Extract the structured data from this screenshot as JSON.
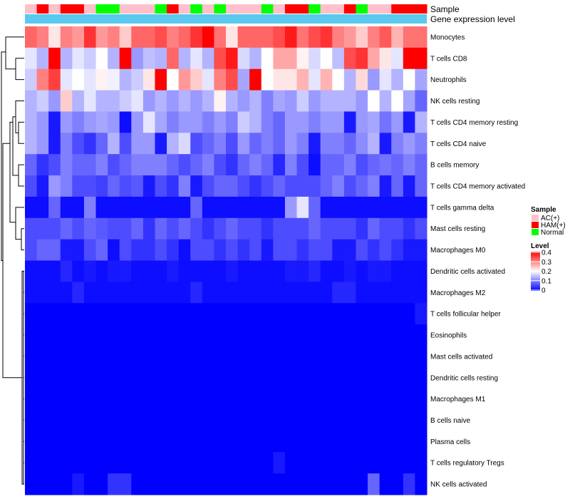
{
  "chart_data": {
    "type": "heatmap",
    "title": "",
    "annotation_titles": {
      "sample": "Sample",
      "gene_expression": "Gene expression level"
    },
    "legend": {
      "sample": {
        "title": "Sample",
        "items": [
          {
            "label": "AC(+)",
            "color": "#FFC0CB"
          },
          {
            "label": "HAM(+)",
            "color": "#FF0000"
          },
          {
            "label": "Normal",
            "color": "#00FF00"
          }
        ]
      },
      "level": {
        "title": "Level",
        "ticks": [
          "0.4",
          "0.3",
          "0.2",
          "0.1",
          "0"
        ],
        "range": [
          0,
          0.4
        ],
        "colors": {
          "low": "#0000FF",
          "mid": "#FFFFFF",
          "high": "#FF0000",
          "mid_value": 0.2
        }
      }
    },
    "sample_groups": [
      "AC(+)",
      "HAM(+)",
      "AC(+)",
      "HAM(+)",
      "HAM(+)",
      "AC(+)",
      "Normal",
      "Normal",
      "AC(+)",
      "AC(+)",
      "AC(+)",
      "Normal",
      "HAM(+)",
      "AC(+)",
      "Normal",
      "AC(+)",
      "Normal",
      "AC(+)",
      "AC(+)",
      "AC(+)",
      "Normal",
      "AC(+)",
      "HAM(+)",
      "HAM(+)",
      "Normal",
      "AC(+)",
      "AC(+)",
      "HAM(+)",
      "Normal",
      "AC(+)",
      "AC(+)",
      "HAM(+)",
      "HAM(+)",
      "HAM(+)"
    ],
    "gene_expression_color": "#5BC8EE",
    "rows": [
      "Monocytes",
      "T cells CD8",
      "Neutrophils",
      "NK cells resting",
      "T cells CD4 memory resting",
      "T cells CD4 naive",
      "B cells memory",
      "T cells CD4 memory activated",
      "T cells gamma delta",
      "Mast cells resting",
      "Macrophages M0",
      "Dendritic cells activated",
      "Macrophages M2",
      "T cells follicular helper",
      "Eosinophils",
      "Mast cells activated",
      "Dendritic cells resting",
      "Macrophages M1",
      "B cells naive",
      "Plasma cells",
      "T cells regulatory  Tregs",
      "NK cells activated"
    ],
    "values": [
      [
        0.32,
        0.3,
        0.22,
        0.3,
        0.28,
        0.36,
        0.28,
        0.3,
        0.24,
        0.32,
        0.32,
        0.34,
        0.3,
        0.32,
        0.36,
        0.4,
        0.31,
        0.22,
        0.32,
        0.32,
        0.32,
        0.34,
        0.38,
        0.31,
        0.34,
        0.36,
        0.3,
        0.28,
        0.24,
        0.3,
        0.33,
        0.26,
        0.31,
        0.31
      ],
      [
        0.18,
        0.14,
        0.4,
        0.14,
        0.18,
        0.16,
        0.2,
        0.14,
        0.4,
        0.12,
        0.15,
        0.14,
        0.32,
        0.14,
        0.18,
        0.14,
        0.34,
        0.38,
        0.17,
        0.14,
        0.2,
        0.27,
        0.27,
        0.21,
        0.17,
        0.2,
        0.15,
        0.34,
        0.36,
        0.27,
        0.22,
        0.18,
        0.4,
        0.4
      ],
      [
        0.16,
        0.3,
        0.35,
        0.18,
        0.2,
        0.18,
        0.21,
        0.19,
        0.14,
        0.16,
        0.22,
        0.4,
        0.2,
        0.28,
        0.24,
        0.18,
        0.3,
        0.34,
        0.13,
        0.4,
        0.2,
        0.22,
        0.22,
        0.26,
        0.18,
        0.26,
        0.2,
        0.14,
        0.23,
        0.12,
        0.18,
        0.14,
        0.2,
        0.13
      ],
      [
        0.14,
        0.16,
        0.12,
        0.24,
        0.14,
        0.18,
        0.14,
        0.14,
        0.16,
        0.18,
        0.12,
        0.14,
        0.12,
        0.14,
        0.12,
        0.14,
        0.21,
        0.14,
        0.12,
        0.14,
        0.1,
        0.13,
        0.12,
        0.16,
        0.12,
        0.14,
        0.14,
        0.14,
        0.12,
        0.2,
        0.14,
        0.2,
        0.13,
        0.08
      ],
      [
        0.14,
        0.12,
        0.02,
        0.12,
        0.1,
        0.12,
        0.13,
        0.12,
        0.01,
        0.12,
        0.18,
        0.13,
        0.1,
        0.12,
        0.12,
        0.1,
        0.12,
        0.1,
        0.16,
        0.14,
        0.1,
        0.08,
        0.12,
        0.12,
        0.1,
        0.12,
        0.12,
        0.02,
        0.12,
        0.13,
        0.09,
        0.12,
        0.02,
        0.14
      ],
      [
        0.14,
        0.12,
        0.02,
        0.1,
        0.06,
        0.04,
        0.08,
        0.14,
        0.06,
        0.12,
        0.12,
        0.02,
        0.14,
        0.17,
        0.06,
        0.08,
        0.1,
        0.06,
        0.12,
        0.08,
        0.1,
        0.08,
        0.12,
        0.1,
        0.02,
        0.1,
        0.1,
        0.08,
        0.11,
        0.14,
        0.02,
        0.1,
        0.12,
        0.1
      ],
      [
        0.08,
        0.04,
        0.06,
        0.1,
        0.08,
        0.08,
        0.1,
        0.06,
        0.08,
        0.1,
        0.1,
        0.1,
        0.08,
        0.06,
        0.08,
        0.1,
        0.06,
        0.04,
        0.08,
        0.1,
        0.08,
        0.03,
        0.1,
        0.06,
        0.01,
        0.08,
        0.08,
        0.1,
        0.06,
        0.08,
        0.09,
        0.08,
        0.1,
        0.08
      ],
      [
        0.06,
        0.02,
        0.12,
        0.1,
        0.06,
        0.06,
        0.05,
        0.08,
        0.06,
        0.07,
        0.02,
        0.06,
        0.04,
        0.1,
        0.02,
        0.06,
        0.08,
        0.08,
        0.06,
        0.04,
        0.06,
        0.08,
        0.06,
        0.06,
        0.06,
        0.08,
        0.1,
        0.06,
        0.08,
        0.1,
        0.02,
        0.08,
        0.02,
        0.08
      ],
      [
        0.01,
        0.01,
        0.08,
        0.01,
        0.01,
        0.1,
        0.01,
        0.01,
        0.01,
        0.01,
        0.01,
        0.01,
        0.01,
        0.01,
        0.08,
        0.01,
        0.01,
        0.01,
        0.01,
        0.01,
        0.01,
        0.01,
        0.12,
        0.18,
        0.08,
        0.01,
        0.01,
        0.01,
        0.01,
        0.01,
        0.01,
        0.01,
        0.01,
        0.01
      ],
      [
        0.06,
        0.06,
        0.06,
        0.08,
        0.06,
        0.08,
        0.07,
        0.06,
        0.06,
        0.08,
        0.04,
        0.08,
        0.06,
        0.08,
        0.06,
        0.04,
        0.06,
        0.08,
        0.06,
        0.06,
        0.04,
        0.06,
        0.06,
        0.06,
        0.08,
        0.06,
        0.06,
        0.06,
        0.04,
        0.08,
        0.06,
        0.06,
        0.04,
        0.06
      ],
      [
        0.06,
        0.08,
        0.08,
        0.02,
        0.02,
        0.06,
        0.08,
        0.01,
        0.06,
        0.04,
        0.04,
        0.06,
        0.04,
        0.01,
        0.06,
        0.06,
        0.04,
        0.06,
        0.04,
        0.06,
        0.02,
        0.06,
        0.06,
        0.04,
        0.06,
        0.06,
        0.02,
        0.02,
        0.06,
        0.04,
        0.06,
        0.04,
        0.02,
        0.02
      ],
      [
        0.01,
        0.01,
        0.01,
        0.03,
        0.01,
        0.02,
        0.01,
        0.02,
        0.02,
        0.01,
        0.01,
        0.01,
        0.02,
        0.01,
        0.01,
        0.01,
        0.01,
        0.02,
        0.01,
        0.01,
        0.01,
        0.01,
        0.02,
        0.02,
        0.03,
        0.01,
        0.01,
        0.02,
        0.01,
        0.02,
        0.02,
        0.01,
        0.01,
        0.01
      ],
      [
        0.01,
        0.01,
        0.01,
        0.01,
        0.03,
        0.01,
        0.01,
        0.01,
        0.01,
        0.01,
        0.01,
        0.01,
        0.01,
        0.01,
        0.03,
        0.01,
        0.01,
        0.01,
        0.01,
        0.01,
        0.01,
        0.01,
        0.01,
        0.01,
        0.01,
        0.01,
        0.03,
        0.03,
        0.01,
        0.01,
        0.01,
        0.01,
        0.01,
        0.01
      ],
      [
        0.0,
        0.0,
        0.0,
        0.0,
        0.0,
        0.0,
        0.0,
        0.0,
        0.0,
        0.0,
        0.0,
        0.0,
        0.0,
        0.0,
        0.0,
        0.0,
        0.0,
        0.0,
        0.0,
        0.0,
        0.0,
        0.0,
        0.0,
        0.0,
        0.0,
        0.0,
        0.0,
        0.0,
        0.0,
        0.0,
        0.0,
        0.0,
        0.0,
        0.02
      ],
      [
        0.0,
        0.0,
        0.0,
        0.0,
        0.0,
        0.0,
        0.0,
        0.0,
        0.0,
        0.0,
        0.0,
        0.0,
        0.0,
        0.0,
        0.0,
        0.0,
        0.0,
        0.0,
        0.0,
        0.0,
        0.0,
        0.0,
        0.0,
        0.0,
        0.0,
        0.0,
        0.0,
        0.0,
        0.0,
        0.0,
        0.0,
        0.0,
        0.0,
        0.0
      ],
      [
        0.0,
        0.0,
        0.0,
        0.0,
        0.0,
        0.0,
        0.0,
        0.0,
        0.0,
        0.0,
        0.0,
        0.0,
        0.0,
        0.0,
        0.0,
        0.0,
        0.0,
        0.0,
        0.0,
        0.0,
        0.0,
        0.0,
        0.0,
        0.0,
        0.0,
        0.0,
        0.0,
        0.0,
        0.0,
        0.0,
        0.0,
        0.0,
        0.0,
        0.0
      ],
      [
        0.0,
        0.0,
        0.0,
        0.0,
        0.0,
        0.0,
        0.0,
        0.0,
        0.0,
        0.0,
        0.0,
        0.0,
        0.0,
        0.0,
        0.0,
        0.0,
        0.0,
        0.0,
        0.0,
        0.0,
        0.0,
        0.0,
        0.0,
        0.0,
        0.0,
        0.0,
        0.0,
        0.0,
        0.0,
        0.0,
        0.0,
        0.0,
        0.0,
        0.0
      ],
      [
        0.0,
        0.0,
        0.0,
        0.0,
        0.0,
        0.0,
        0.0,
        0.0,
        0.0,
        0.0,
        0.0,
        0.0,
        0.0,
        0.0,
        0.0,
        0.0,
        0.0,
        0.0,
        0.0,
        0.0,
        0.0,
        0.0,
        0.0,
        0.0,
        0.0,
        0.0,
        0.0,
        0.0,
        0.0,
        0.0,
        0.0,
        0.0,
        0.0,
        0.0
      ],
      [
        0.0,
        0.0,
        0.0,
        0.0,
        0.0,
        0.0,
        0.0,
        0.0,
        0.0,
        0.0,
        0.0,
        0.0,
        0.0,
        0.0,
        0.0,
        0.0,
        0.0,
        0.0,
        0.0,
        0.0,
        0.0,
        0.0,
        0.0,
        0.0,
        0.0,
        0.0,
        0.0,
        0.0,
        0.0,
        0.0,
        0.0,
        0.0,
        0.0,
        0.0
      ],
      [
        0.0,
        0.0,
        0.0,
        0.0,
        0.0,
        0.0,
        0.0,
        0.0,
        0.0,
        0.0,
        0.0,
        0.0,
        0.0,
        0.0,
        0.0,
        0.0,
        0.0,
        0.0,
        0.0,
        0.0,
        0.0,
        0.0,
        0.0,
        0.0,
        0.0,
        0.0,
        0.0,
        0.0,
        0.0,
        0.0,
        0.0,
        0.0,
        0.0,
        0.0
      ],
      [
        0.0,
        0.0,
        0.0,
        0.0,
        0.0,
        0.0,
        0.0,
        0.0,
        0.0,
        0.0,
        0.0,
        0.0,
        0.0,
        0.0,
        0.0,
        0.0,
        0.0,
        0.0,
        0.0,
        0.0,
        0.0,
        0.02,
        0.0,
        0.0,
        0.0,
        0.0,
        0.0,
        0.0,
        0.0,
        0.0,
        0.0,
        0.0,
        0.0,
        0.0
      ],
      [
        0.0,
        0.0,
        0.0,
        0.0,
        0.02,
        0.0,
        0.0,
        0.04,
        0.04,
        0.0,
        0.0,
        0.0,
        0.0,
        0.0,
        0.0,
        0.0,
        0.0,
        0.0,
        0.0,
        0.0,
        0.0,
        0.0,
        0.0,
        0.0,
        0.0,
        0.0,
        0.0,
        0.0,
        0.0,
        0.08,
        0.0,
        0.0,
        0.04,
        0.0
      ]
    ]
  }
}
